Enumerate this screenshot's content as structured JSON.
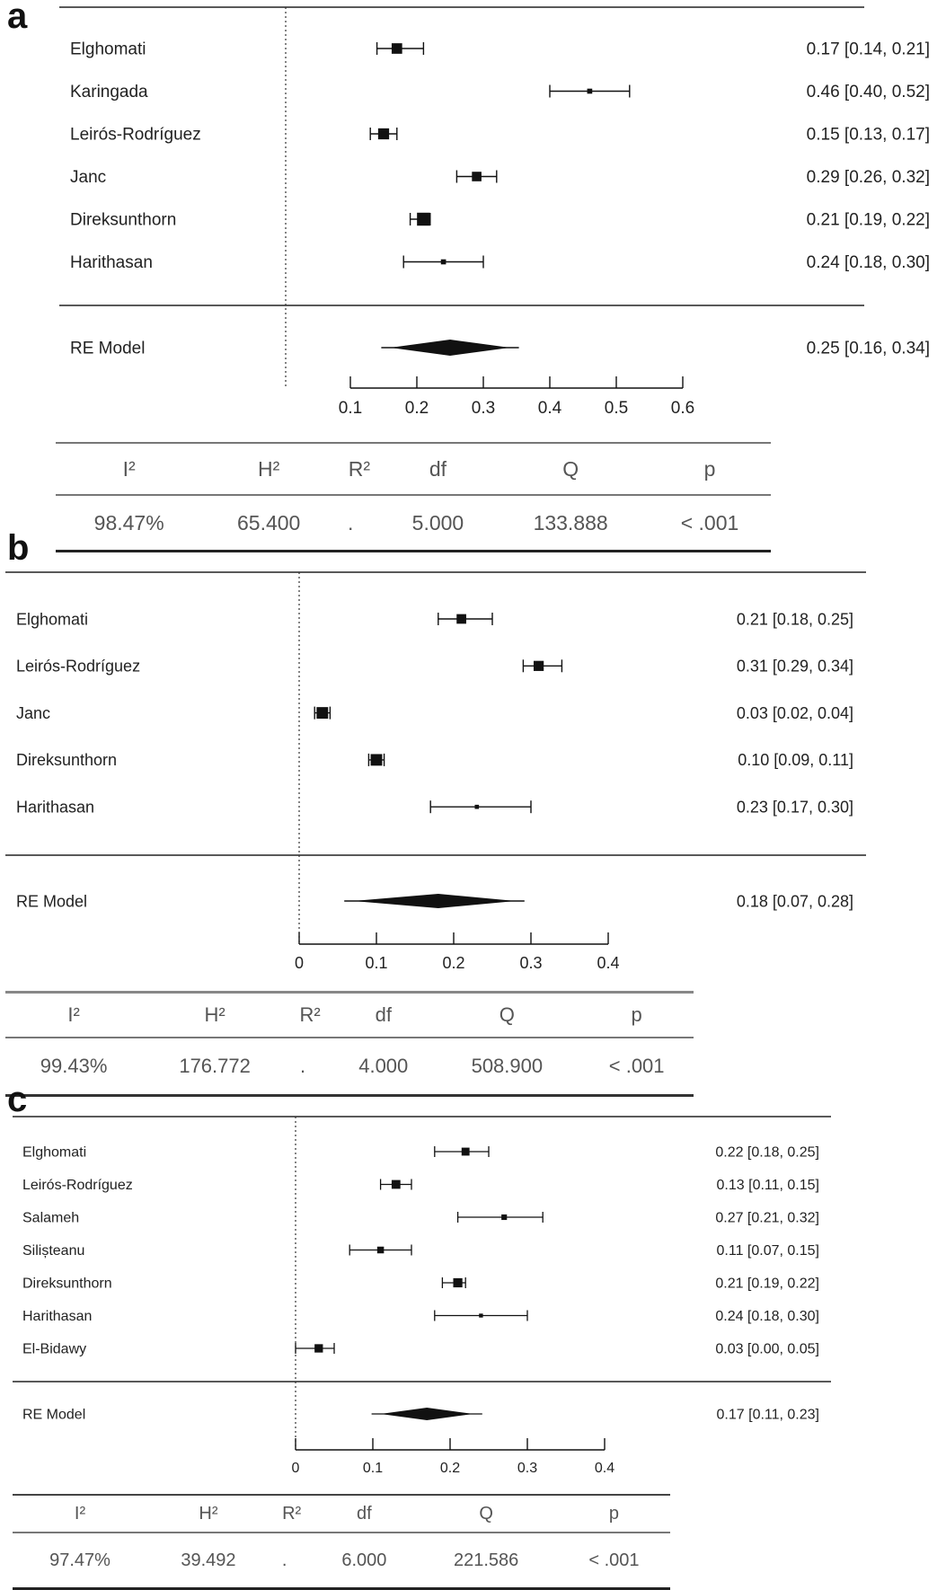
{
  "panels": [
    {
      "letter": "a",
      "chart_data": {
        "type": "forest",
        "studies": [
          {
            "name": "Elghomati",
            "estimate": 0.17,
            "ci": [
              0.14,
              0.21
            ],
            "label": "0.17 [0.14, 0.21]",
            "weight": 0.7
          },
          {
            "name": "Karingada",
            "estimate": 0.46,
            "ci": [
              0.4,
              0.52
            ],
            "label": "0.46 [0.40, 0.52]",
            "weight": 0.15
          },
          {
            "name": "Leirós-Rodríguez",
            "estimate": 0.15,
            "ci": [
              0.13,
              0.17
            ],
            "label": "0.15 [0.13, 0.17]",
            "weight": 0.75
          },
          {
            "name": "Janc",
            "estimate": 0.29,
            "ci": [
              0.26,
              0.32
            ],
            "label": "0.29 [0.26, 0.32]",
            "weight": 0.6
          },
          {
            "name": "Direksunthorn",
            "estimate": 0.21,
            "ci": [
              0.19,
              0.22
            ],
            "label": "0.21 [0.19, 0.22]",
            "weight": 0.95
          },
          {
            "name": "Harithasan",
            "estimate": 0.24,
            "ci": [
              0.18,
              0.3
            ],
            "label": "0.24 [0.18, 0.30]",
            "weight": 0.15
          }
        ],
        "summary": {
          "name": "RE Model",
          "estimate": 0.25,
          "ci": [
            0.16,
            0.34
          ],
          "label": "0.25 [0.16, 0.34]"
        },
        "xlim": [
          0.1,
          0.6
        ],
        "ticks": [
          0.1,
          0.2,
          0.3,
          0.4,
          0.5,
          0.6
        ],
        "tick_labels": [
          "0.1",
          "0.2",
          "0.3",
          "0.4",
          "0.5",
          "0.6"
        ],
        "reference_line": 0.0
      },
      "stats": {
        "headers": [
          "I²",
          "H²",
          "R²",
          "df",
          "Q",
          "p"
        ],
        "values": [
          "98.47%",
          "65.400",
          ".",
          "5.000",
          "133.888",
          "< .001"
        ]
      }
    },
    {
      "letter": "b",
      "chart_data": {
        "type": "forest",
        "studies": [
          {
            "name": "Elghomati",
            "estimate": 0.21,
            "ci": [
              0.18,
              0.25
            ],
            "label": "0.21 [0.18, 0.25]",
            "weight": 0.7
          },
          {
            "name": "Leirós-Rodríguez",
            "estimate": 0.31,
            "ci": [
              0.29,
              0.34
            ],
            "label": "0.31 [0.29, 0.34]",
            "weight": 0.75
          },
          {
            "name": "Janc",
            "estimate": 0.03,
            "ci": [
              0.02,
              0.04
            ],
            "label": "0.03 [0.02, 0.04]",
            "weight": 0.9
          },
          {
            "name": "Direksunthorn",
            "estimate": 0.1,
            "ci": [
              0.09,
              0.11
            ],
            "label": "0.10 [0.09, 0.11]",
            "weight": 0.9
          },
          {
            "name": "Harithasan",
            "estimate": 0.23,
            "ci": [
              0.17,
              0.3
            ],
            "label": "0.23 [0.17, 0.30]",
            "weight": 0.15
          }
        ],
        "summary": {
          "name": "RE Model",
          "estimate": 0.18,
          "ci": [
            0.07,
            0.28
          ],
          "label": "0.18 [0.07, 0.28]"
        },
        "xlim": [
          0,
          0.4
        ],
        "ticks": [
          0,
          0.1,
          0.2,
          0.3,
          0.4
        ],
        "tick_labels": [
          "0",
          "0.1",
          "0.2",
          "0.3",
          "0.4"
        ],
        "reference_line": 0.0
      },
      "stats": {
        "headers": [
          "I²",
          "H²",
          "R²",
          "df",
          "Q",
          "p"
        ],
        "values": [
          "99.43%",
          "176.772",
          ".",
          "4.000",
          "508.900",
          "< .001"
        ]
      }
    },
    {
      "letter": "c",
      "chart_data": {
        "type": "forest",
        "studies": [
          {
            "name": "Elghomati",
            "estimate": 0.22,
            "ci": [
              0.18,
              0.25
            ],
            "label": "0.22 [0.18, 0.25]",
            "weight": 0.65
          },
          {
            "name": "Leirós-Rodríguez",
            "estimate": 0.13,
            "ci": [
              0.11,
              0.15
            ],
            "label": "0.13 [0.11, 0.15]",
            "weight": 0.75
          },
          {
            "name": "Salameh",
            "estimate": 0.27,
            "ci": [
              0.21,
              0.32
            ],
            "label": "0.27 [0.21, 0.32]",
            "weight": 0.35
          },
          {
            "name": "Silișteanu",
            "estimate": 0.11,
            "ci": [
              0.07,
              0.15
            ],
            "label": "0.11 [0.07, 0.15]",
            "weight": 0.5
          },
          {
            "name": "Direksunthorn",
            "estimate": 0.21,
            "ci": [
              0.19,
              0.22
            ],
            "label": "0.21 [0.19, 0.22]",
            "weight": 0.8
          },
          {
            "name": "Harithasan",
            "estimate": 0.24,
            "ci": [
              0.18,
              0.3
            ],
            "label": "0.24 [0.18, 0.30]",
            "weight": 0.15
          },
          {
            "name": "El-Bidawy",
            "estimate": 0.03,
            "ci": [
              0.0,
              0.05
            ],
            "label": "0.03 [0.00, 0.05]",
            "weight": 0.7
          }
        ],
        "summary": {
          "name": "RE Model",
          "estimate": 0.17,
          "ci": [
            0.11,
            0.23
          ],
          "label": "0.17 [0.11, 0.23]"
        },
        "xlim": [
          0,
          0.4
        ],
        "ticks": [
          0,
          0.1,
          0.2,
          0.3,
          0.4
        ],
        "tick_labels": [
          "0",
          "0.1",
          "0.2",
          "0.3",
          "0.4"
        ],
        "reference_line": 0.0
      },
      "stats": {
        "headers": [
          "I²",
          "H²",
          "R²",
          "df",
          "Q",
          "p"
        ],
        "values": [
          "97.47%",
          "39.492",
          ".",
          "6.000",
          "221.586",
          "< .001"
        ]
      }
    }
  ]
}
